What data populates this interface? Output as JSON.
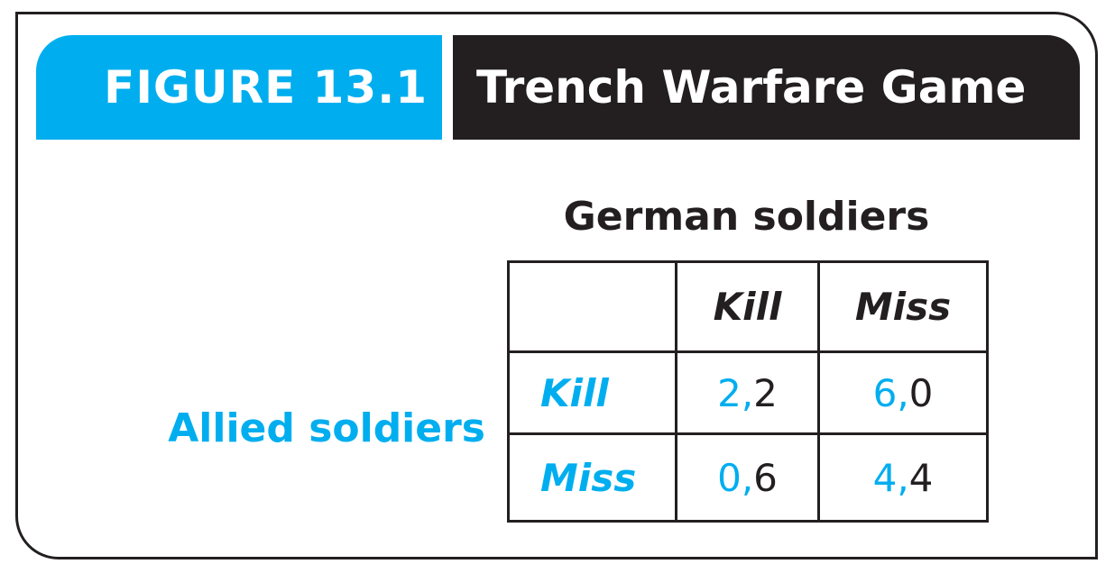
{
  "header": {
    "figure_label": "FIGURE 13.1",
    "title": "Trench Warfare Game"
  },
  "game": {
    "column_player": "German soldiers",
    "row_player": "Allied soldiers",
    "column_strategies": [
      "Kill",
      "Miss"
    ],
    "row_strategies": [
      "Kill",
      "Miss"
    ],
    "payoffs": [
      [
        {
          "allied": "2",
          "separator": ",",
          "german": "2"
        },
        {
          "allied": "6",
          "separator": ",",
          "german": "0"
        }
      ],
      [
        {
          "allied": "0",
          "separator": ",",
          "german": "6"
        },
        {
          "allied": "4",
          "separator": ",",
          "german": "4"
        }
      ]
    ]
  },
  "colors": {
    "accent_blue": "#00aeef",
    "dark": "#231f20",
    "background": "#ffffff"
  }
}
